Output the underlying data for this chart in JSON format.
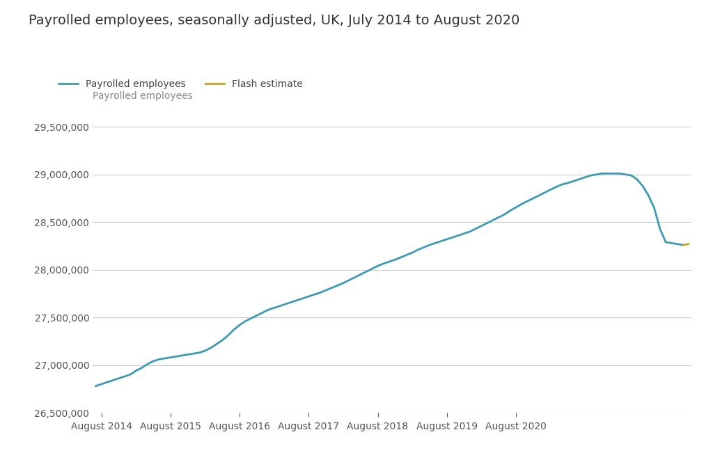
{
  "title": "Payrolled employees, seasonally adjusted, UK, July 2014 to August 2020",
  "ylabel": "Payrolled employees",
  "background_color": "#ffffff",
  "line_color": "#3d9ab5",
  "flash_color": "#c8a227",
  "ylim": [
    26500000,
    29600000
  ],
  "yticks": [
    26500000,
    27000000,
    27500000,
    28000000,
    28500000,
    29000000,
    29500000
  ],
  "xtick_labels": [
    "August 2014",
    "August 2015",
    "August 2016",
    "August 2017",
    "August 2018",
    "August 2019",
    "August 2020"
  ],
  "payrolled_employees": [
    26780000,
    26800000,
    26820000,
    26840000,
    26860000,
    26880000,
    26900000,
    26940000,
    26970000,
    27010000,
    27040000,
    27060000,
    27070000,
    27080000,
    27090000,
    27100000,
    27110000,
    27120000,
    27130000,
    27150000,
    27180000,
    27220000,
    27260000,
    27310000,
    27370000,
    27420000,
    27460000,
    27490000,
    27520000,
    27550000,
    27580000,
    27600000,
    27620000,
    27640000,
    27660000,
    27680000,
    27700000,
    27720000,
    27740000,
    27760000,
    27785000,
    27810000,
    27835000,
    27860000,
    27890000,
    27920000,
    27950000,
    27980000,
    28010000,
    28040000,
    28065000,
    28085000,
    28105000,
    28130000,
    28155000,
    28180000,
    28210000,
    28235000,
    28260000,
    28280000,
    28300000,
    28320000,
    28340000,
    28360000,
    28380000,
    28400000,
    28430000,
    28460000,
    28490000,
    28520000,
    28550000,
    28580000,
    28620000,
    28655000,
    28690000,
    28720000,
    28750000,
    28780000,
    28810000,
    28840000,
    28870000,
    28895000,
    28910000,
    28930000,
    28950000,
    28970000,
    28990000,
    29000000,
    29010000,
    29010000,
    29010000,
    29010000,
    29000000,
    28990000,
    28950000,
    28880000,
    28780000,
    28650000,
    28430000,
    28290000,
    28280000,
    28270000,
    28260000,
    28270000
  ],
  "title_fontsize": 14,
  "tick_fontsize": 10,
  "legend_fontsize": 10,
  "ylabel_fontsize": 10,
  "tick_color": "#555555",
  "ylabel_color": "#888888",
  "title_color": "#333333",
  "grid_color": "#cccccc",
  "legend_label_color": "#444444"
}
